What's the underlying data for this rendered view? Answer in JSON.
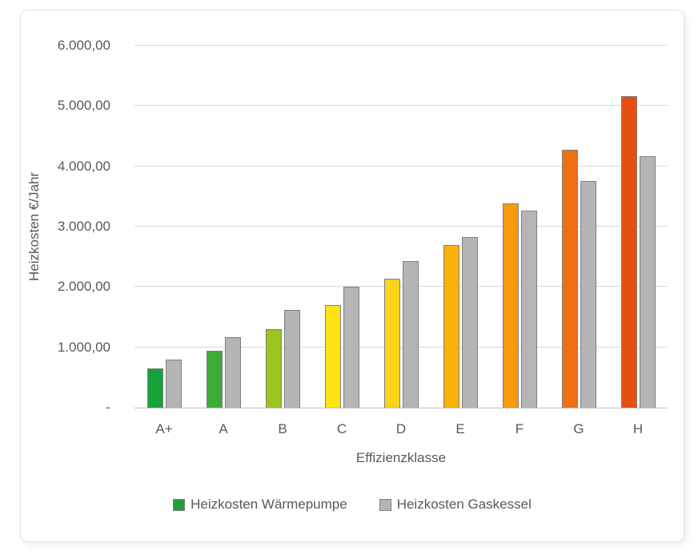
{
  "chart_data": {
    "type": "bar",
    "title": "",
    "xlabel": "Effizienzklasse",
    "ylabel": "Heizkosten €/Jahr",
    "categories": [
      "A+",
      "A",
      "B",
      "C",
      "D",
      "E",
      "F",
      "G",
      "H"
    ],
    "series": [
      {
        "name": "Heizkosten Wärmepumpe",
        "values": [
          650,
          940,
          1300,
          1700,
          2140,
          2700,
          3390,
          4280,
          5170
        ],
        "colors": [
          "#17a23a",
          "#3faa35",
          "#9cc41e",
          "#fee412",
          "#fdd41b",
          "#f9b20b",
          "#f79a0b",
          "#ed7014",
          "#e5500f"
        ],
        "legend_color": "#21a038"
      },
      {
        "name": "Heizkosten Gaskessel",
        "values": [
          800,
          1170,
          1620,
          2000,
          2430,
          2830,
          3270,
          3760,
          4170
        ],
        "colors": [
          "#b5b5b5",
          "#b5b5b5",
          "#b5b5b5",
          "#b5b5b5",
          "#b5b5b5",
          "#b5b5b5",
          "#b5b5b5",
          "#b5b5b5",
          "#b5b5b5"
        ],
        "legend_color": "#b5b5b5"
      }
    ],
    "ylim": [
      0,
      6000
    ],
    "ytick_step": 1000,
    "ytick_labels": [
      "-",
      "1.000,00",
      "2.000,00",
      "3.000,00",
      "4.000,00",
      "5.000,00",
      "6.000,00"
    ],
    "grid": true,
    "gridline_color": "#d9d9d9",
    "bar_border_color": "#7f7f7f",
    "legend_position": "bottom"
  }
}
